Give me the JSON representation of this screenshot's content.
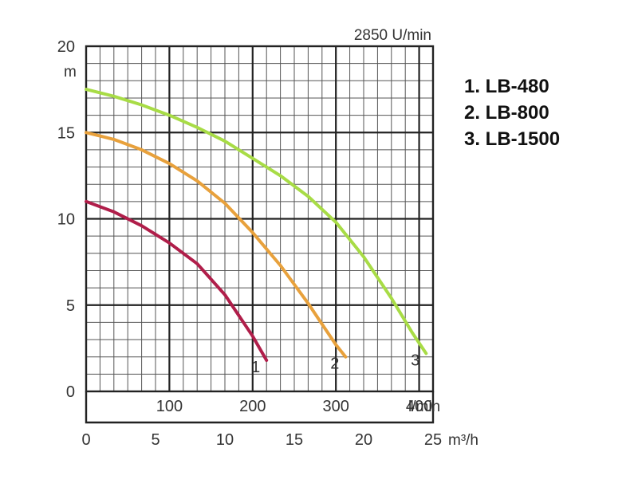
{
  "chart_data": {
    "type": "line",
    "title": "2850 U/min",
    "ylabel": "m",
    "xlabel": "m³/h",
    "x2label": "l/min",
    "xlim": [
      0,
      25
    ],
    "ylim": [
      0,
      20
    ],
    "x2lim": [
      0,
      416.7
    ],
    "yticks": [
      "0",
      "5",
      "10",
      "15",
      "20"
    ],
    "xticks": [
      "0",
      "5",
      "10",
      "15",
      "20",
      "25"
    ],
    "x2ticks": [
      "100",
      "200",
      "300",
      "400"
    ],
    "grid": true,
    "legend_position": "right",
    "series": [
      {
        "name": "LB-480",
        "label": "1",
        "color": "#b01e4a",
        "x": [
          0,
          2,
          4,
          6,
          8,
          10,
          11,
          12,
          12.5,
          13
        ],
        "y": [
          11,
          10.4,
          9.6,
          8.6,
          7.4,
          5.6,
          4.4,
          3.2,
          2.5,
          1.8
        ]
      },
      {
        "name": "LB-800",
        "label": "2",
        "color": "#e8a13c",
        "x": [
          0,
          2,
          4,
          6,
          8,
          10,
          12,
          14,
          16,
          17,
          18,
          18.7
        ],
        "y": [
          15,
          14.6,
          14,
          13.2,
          12.2,
          10.9,
          9.2,
          7.3,
          5.1,
          3.9,
          2.7,
          2
        ]
      },
      {
        "name": "LB-1500",
        "label": "3",
        "color": "#a8dc46",
        "x": [
          0,
          2,
          4,
          6,
          8,
          10,
          12,
          14,
          16,
          18,
          20,
          22,
          23.5,
          24.5
        ],
        "y": [
          17.5,
          17.1,
          16.6,
          16,
          15.3,
          14.5,
          13.5,
          12.5,
          11.3,
          9.8,
          7.8,
          5.4,
          3.4,
          2.2
        ]
      }
    ]
  },
  "legend": [
    "1. LB-480",
    "2. LB-800",
    "3. LB-1500"
  ]
}
